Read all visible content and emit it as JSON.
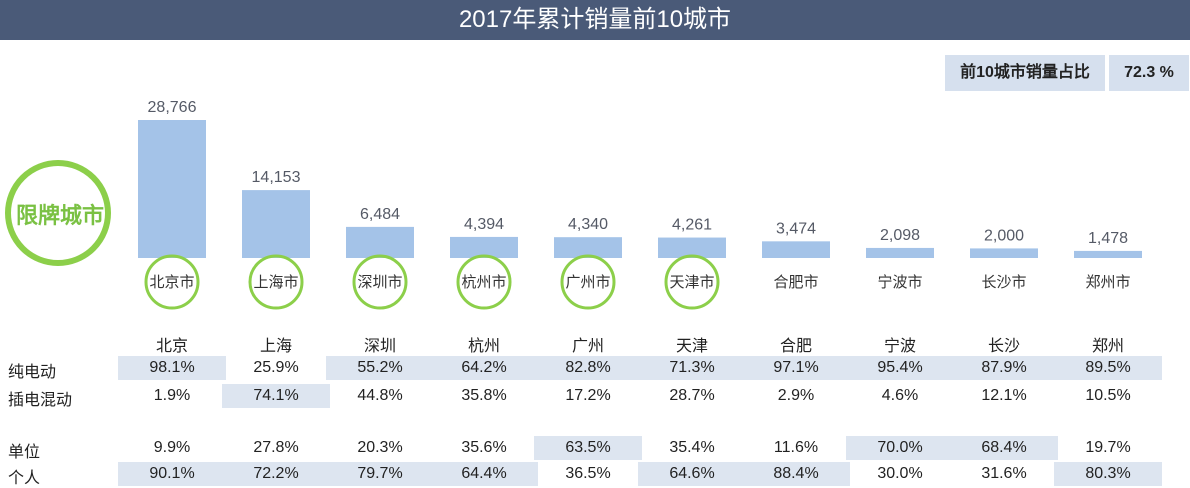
{
  "page": {
    "title": "2017年累计销量前10城市",
    "summary_label": "前10城市销量占比",
    "summary_value": "72.3 %",
    "badge_text": "限牌城市",
    "colors": {
      "header_bg": "#4a5a78",
      "bar": "#a4c3e8",
      "ring": "#8ccf4a",
      "highlight": "#dde5f0"
    }
  },
  "chart_data": {
    "type": "bar",
    "title": "2017年累计销量前10城市",
    "categories": [
      "北京市",
      "上海市",
      "深圳市",
      "杭州市",
      "广州市",
      "天津市",
      "合肥市",
      "宁波市",
      "长沙市",
      "郑州市"
    ],
    "values": [
      28766,
      14153,
      6484,
      4394,
      4340,
      4261,
      3474,
      2098,
      2000,
      1478
    ],
    "value_labels": [
      "28,766",
      "14,153",
      "6,484",
      "4,394",
      "4,340",
      "4,261",
      "3,474",
      "2,098",
      "2,000",
      "1,478"
    ],
    "restricted_cities": [
      true,
      true,
      true,
      true,
      true,
      true,
      false,
      false,
      false,
      false
    ]
  },
  "table": {
    "columns": [
      "北京",
      "上海",
      "深圳",
      "杭州",
      "广州",
      "天津",
      "合肥",
      "宁波",
      "长沙",
      "郑州"
    ],
    "rows": [
      {
        "label": "纯电动",
        "values": [
          "98.1%",
          "25.9%",
          "55.2%",
          "64.2%",
          "82.8%",
          "71.3%",
          "97.1%",
          "95.4%",
          "87.9%",
          "89.5%"
        ],
        "highlight": [
          true,
          false,
          true,
          true,
          true,
          true,
          true,
          true,
          true,
          true
        ]
      },
      {
        "label": "插电混动",
        "values": [
          "1.9%",
          "74.1%",
          "44.8%",
          "35.8%",
          "17.2%",
          "28.7%",
          "2.9%",
          "4.6%",
          "12.1%",
          "10.5%"
        ],
        "highlight": [
          false,
          true,
          false,
          false,
          false,
          false,
          false,
          false,
          false,
          false
        ]
      },
      {
        "label": "单位",
        "values": [
          "9.9%",
          "27.8%",
          "20.3%",
          "35.6%",
          "63.5%",
          "35.4%",
          "11.6%",
          "70.0%",
          "68.4%",
          "19.7%"
        ],
        "highlight": [
          false,
          false,
          false,
          false,
          true,
          false,
          false,
          true,
          true,
          false
        ]
      },
      {
        "label": "个人",
        "values": [
          "90.1%",
          "72.2%",
          "79.7%",
          "64.4%",
          "36.5%",
          "64.6%",
          "88.4%",
          "30.0%",
          "31.6%",
          "80.3%"
        ],
        "highlight": [
          true,
          true,
          true,
          true,
          false,
          true,
          true,
          false,
          false,
          true
        ]
      }
    ]
  }
}
